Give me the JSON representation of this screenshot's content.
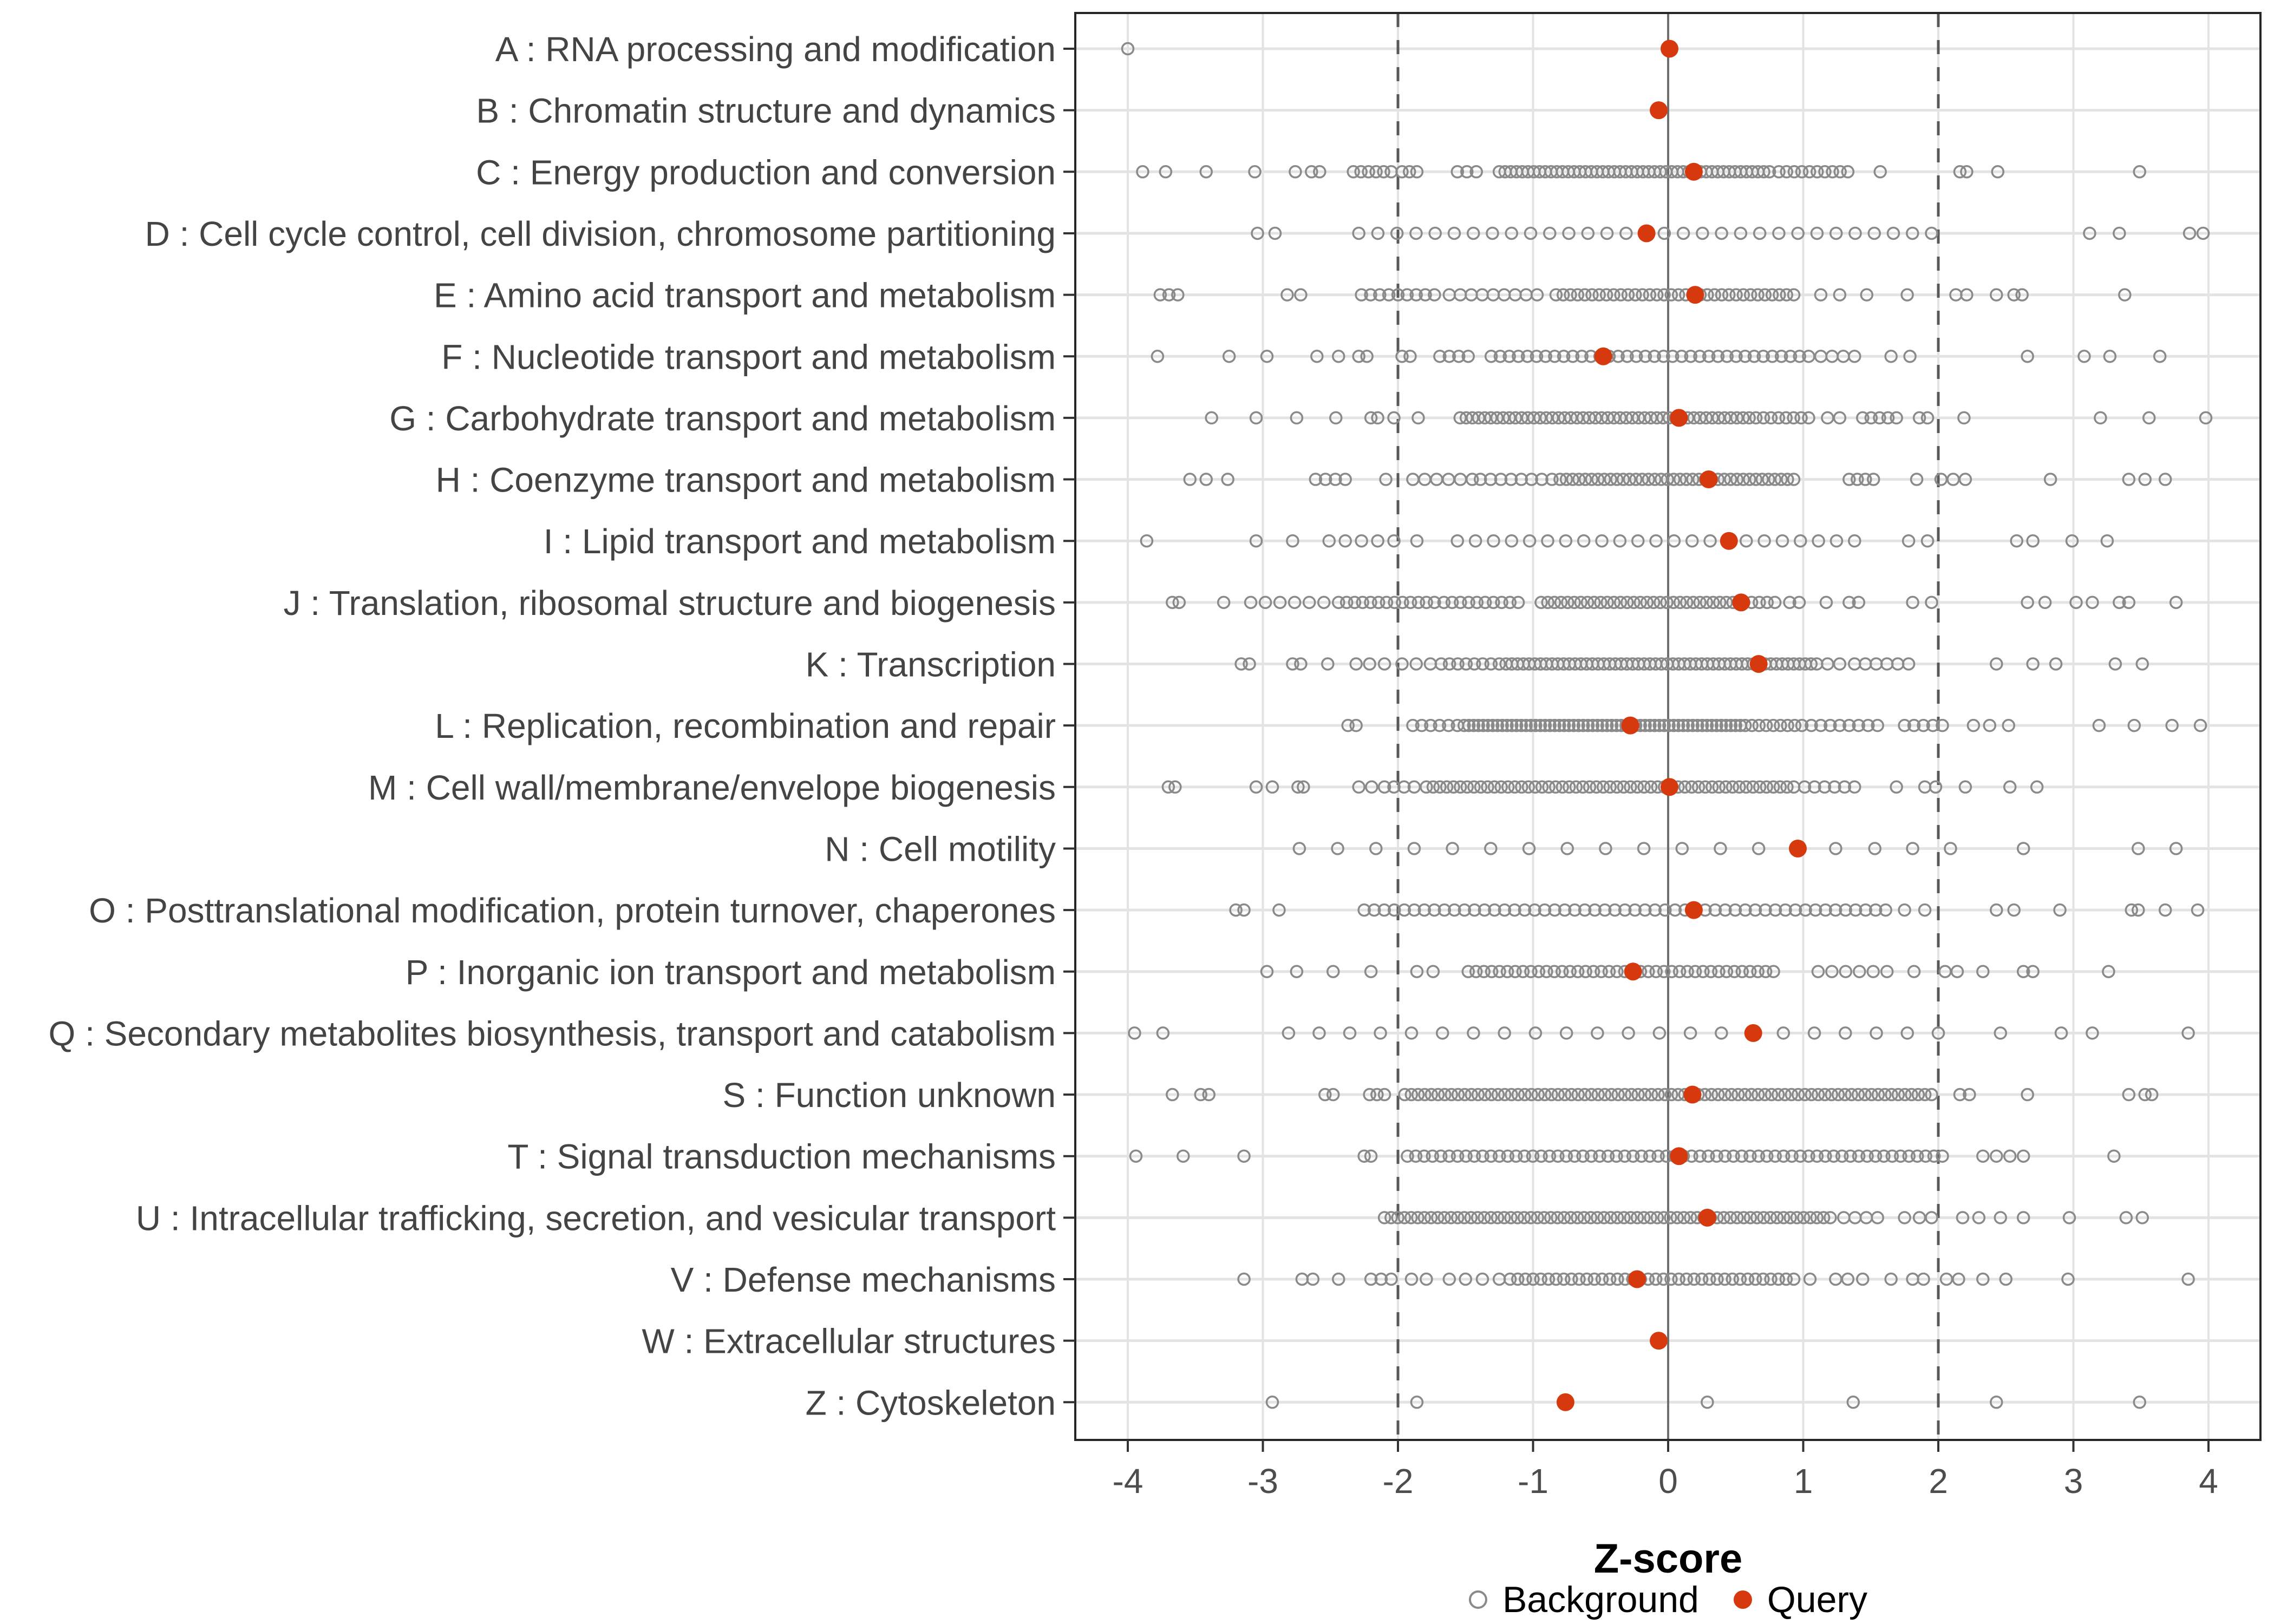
{
  "chart_data": {
    "type": "scatter",
    "title": "",
    "xlabel": "Z-score",
    "ylabel": "",
    "x_ticks": [
      -4,
      -3,
      -2,
      -1,
      0,
      1,
      2,
      3,
      4
    ],
    "xlim": [
      -4.39,
      4.38
    ],
    "grid": "on",
    "legend_position": "bottom",
    "reference_lines": {
      "solid": [
        0
      ],
      "dashed": [
        -2,
        2
      ]
    },
    "legend": {
      "background_label": "Background",
      "query_label": "Query"
    },
    "colors": {
      "query_fill": "#d6390e",
      "background_stroke": "#8a8a8a",
      "gridline": "#e3e3e3",
      "row_line": "#e3e3e3",
      "zero_line": "#6e6e6e",
      "threshold_line": "#595959",
      "panel_border": "#262626",
      "tick_mark": "#333333",
      "tick_label": "#4d4d4d",
      "category_label": "#444444",
      "legend_text": "#000000"
    },
    "note": "background entries are z-scores; an entry [from,to,n] denotes n evenly spaced points from 'from' to 'to'",
    "categories": [
      {
        "code": "A",
        "label": "A : RNA processing and modification",
        "query": 0.01,
        "background": [
          -4.0
        ]
      },
      {
        "code": "B",
        "label": "B : Chromatin structure and dynamics",
        "query": -0.07,
        "background": []
      },
      {
        "code": "C",
        "label": "C : Energy production and conversion",
        "query": 0.19,
        "background": [
          -3.89,
          -3.72,
          -3.42,
          -3.06,
          -2.76,
          -2.64,
          -2.58,
          [
            -2.33,
            -2.05,
            6
          ],
          [
            -1.97,
            -1.86,
            3
          ],
          [
            -1.56,
            -1.42,
            3
          ],
          [
            -1.25,
            0.75,
            48
          ],
          [
            0.82,
            1.33,
            10
          ],
          1.57,
          2.16,
          2.21,
          2.44,
          3.49
        ]
      },
      {
        "code": "D",
        "label": "D : Cell cycle control, cell division, chromosome partitioning",
        "query": -0.16,
        "background": [
          -3.04,
          -2.91,
          [
            -2.29,
            1.95,
            31
          ],
          3.12,
          3.34,
          3.86,
          3.96
        ]
      },
      {
        "code": "E",
        "label": "E : Amino acid transport and metabolism",
        "query": 0.2,
        "background": [
          [
            -3.76,
            -3.63,
            3
          ],
          -2.82,
          -2.72,
          [
            -2.27,
            -1.73,
            9
          ],
          [
            -1.62,
            -0.97,
            9
          ],
          [
            -0.83,
            0.93,
            34
          ],
          1.13,
          1.27,
          1.47,
          1.77,
          2.13,
          2.21,
          2.43,
          2.56,
          2.62,
          3.38
        ]
      },
      {
        "code": "F",
        "label": "F : Nucleotide transport and metabolism",
        "query": -0.48,
        "background": [
          -3.78,
          -3.25,
          -2.97,
          -2.6,
          -2.44,
          -2.29,
          -2.23,
          -1.97,
          -1.91,
          [
            -1.69,
            -1.48,
            4
          ],
          [
            -1.31,
            1.04,
            36
          ],
          [
            1.13,
            1.38,
            4
          ],
          1.65,
          1.79,
          2.66,
          3.08,
          3.27,
          3.64
        ]
      },
      {
        "code": "G",
        "label": "G : Carbohydrate transport and metabolism",
        "query": 0.08,
        "background": [
          -3.38,
          -3.05,
          -2.75,
          -2.46,
          -2.2,
          -2.15,
          -2.03,
          -1.85,
          [
            -1.54,
            0.6,
            48
          ],
          [
            0.65,
            1.04,
            8
          ],
          1.18,
          1.27,
          [
            1.44,
            1.69,
            5
          ],
          1.86,
          1.92,
          2.19,
          3.2,
          3.56,
          3.98
        ]
      },
      {
        "code": "H",
        "label": "H : Coenzyme transport and metabolism",
        "query": 0.3,
        "background": [
          -3.54,
          -3.42,
          -3.26,
          [
            -2.61,
            -2.39,
            4
          ],
          -2.09,
          [
            -1.89,
            -1.45,
            6
          ],
          [
            -1.39,
            -0.86,
            8
          ],
          [
            -0.8,
            0.93,
            38
          ],
          [
            1.34,
            1.52,
            4
          ],
          1.84,
          2.02,
          2.11,
          2.2,
          2.83,
          3.41,
          3.53,
          3.68
        ]
      },
      {
        "code": "I",
        "label": "I : Lipid transport and metabolism",
        "query": 0.45,
        "background": [
          -3.86,
          -3.05,
          -2.78,
          [
            -2.51,
            -2.03,
            5
          ],
          -1.86,
          [
            -1.56,
            1.38,
            23
          ],
          1.78,
          1.92,
          2.58,
          2.7,
          2.99,
          3.25
        ]
      },
      {
        "code": "J",
        "label": "J : Translation, ribosomal structure and biogenesis",
        "query": 0.54,
        "background": [
          -3.67,
          -3.62,
          -3.29,
          [
            -3.09,
            -2.44,
            7
          ],
          [
            -2.38,
            -1.73,
            12
          ],
          [
            -1.66,
            -1.11,
            10
          ],
          [
            -0.94,
            0.48,
            30
          ],
          [
            0.56,
            0.79,
            5
          ],
          0.9,
          0.97,
          1.17,
          1.34,
          1.41,
          1.81,
          1.95,
          2.66,
          2.79,
          3.02,
          3.14,
          3.34,
          3.41,
          3.76
        ]
      },
      {
        "code": "K",
        "label": "K : Transcription",
        "query": 0.67,
        "background": [
          -3.16,
          -3.1,
          -2.78,
          -2.72,
          -2.52,
          -2.31,
          -2.21,
          -2.1,
          [
            -1.97,
            -1.76,
            3
          ],
          [
            -1.68,
            -1.25,
            8
          ],
          [
            -1.2,
            1.1,
            55
          ],
          1.18,
          1.27,
          [
            1.38,
            1.78,
            6
          ],
          2.43,
          2.7,
          2.87,
          3.31,
          3.51
        ]
      },
      {
        "code": "L",
        "label": "L : Replication, recombination and repair",
        "query": -0.28,
        "background": [
          -2.37,
          -2.31,
          [
            -1.89,
            -1.56,
            6
          ],
          [
            -1.51,
            0.57,
            60
          ],
          [
            0.62,
            0.99,
            8
          ],
          [
            1.06,
            1.55,
            8
          ],
          [
            1.75,
            2.03,
            5
          ],
          2.26,
          2.38,
          2.52,
          3.19,
          3.45,
          3.73,
          3.94
        ]
      },
      {
        "code": "M",
        "label": "M : Cell wall/membrane/envelope biogenesis",
        "query": 0.01,
        "background": [
          -3.7,
          -3.65,
          -3.05,
          -2.93,
          -2.74,
          -2.7,
          [
            -2.29,
            -2.1,
            3
          ],
          [
            -2.03,
            -1.88,
            3
          ],
          [
            -1.79,
            0.93,
            55
          ],
          [
            1.01,
            1.38,
            6
          ],
          1.69,
          1.9,
          1.98,
          2.2,
          2.53,
          2.73
        ]
      },
      {
        "code": "N",
        "label": "N : Cell motility",
        "query": 0.96,
        "background": [
          [
            -2.73,
            0.67,
            13
          ],
          1.24,
          1.53,
          1.81,
          2.09,
          2.63,
          3.48,
          3.76
        ]
      },
      {
        "code": "O",
        "label": "O : Posttranslational modification, protein turnover, chaperones",
        "query": 0.19,
        "background": [
          -3.2,
          -3.14,
          -2.88,
          [
            -2.25,
            1.61,
            53
          ],
          1.75,
          1.9,
          2.43,
          2.56,
          2.9,
          3.43,
          3.48,
          3.68,
          3.92
        ]
      },
      {
        "code": "P",
        "label": "P : Inorganic ion transport and metabolism",
        "query": -0.26,
        "background": [
          -2.97,
          -2.75,
          -2.48,
          -2.2,
          -1.86,
          -1.74,
          [
            -1.48,
            0.78,
            40
          ],
          [
            1.11,
            1.62,
            6
          ],
          1.82,
          2.05,
          2.14,
          2.33,
          2.63,
          2.7,
          3.26
        ]
      },
      {
        "code": "Q",
        "label": "Q : Secondary metabolites biosynthesis, transport and catabolism",
        "query": 0.63,
        "background": [
          -3.95,
          -3.74,
          [
            -2.81,
            -2.13,
            4
          ],
          [
            -1.9,
            2.0,
            18
          ],
          2.46,
          2.91,
          3.14,
          3.85
        ]
      },
      {
        "code": "S",
        "label": "S : Function unknown",
        "query": 0.18,
        "background": [
          -3.67,
          -3.46,
          -3.4,
          -2.54,
          -2.48,
          [
            -2.21,
            -2.1,
            3
          ],
          [
            -1.95,
            1.95,
            80
          ],
          2.16,
          2.23,
          2.66,
          3.41,
          3.53,
          3.58
        ]
      },
      {
        "code": "T",
        "label": "T : Signal transduction mechanisms",
        "query": 0.08,
        "background": [
          -3.94,
          -3.59,
          -3.14,
          -2.25,
          -2.2,
          [
            -1.93,
            2.03,
            65
          ],
          [
            2.33,
            2.63,
            4
          ],
          3.3
        ]
      },
      {
        "code": "U",
        "label": "U : Intracellular trafficking, secretion, and vesicular transport",
        "query": 0.29,
        "background": [
          [
            -2.1,
            1.2,
            68
          ],
          [
            1.3,
            1.55,
            4
          ],
          1.75,
          1.86,
          1.95,
          2.18,
          2.3,
          2.46,
          2.63,
          2.97,
          3.39,
          3.51
        ]
      },
      {
        "code": "V",
        "label": "V : Defense mechanisms",
        "query": -0.23,
        "background": [
          -3.14,
          -2.71,
          -2.63,
          -2.44,
          [
            -2.2,
            -2.05,
            3
          ],
          -1.9,
          -1.79,
          -1.62,
          [
            -1.5,
            -1.25,
            3
          ],
          [
            -1.17,
            0.93,
            38
          ],
          1.05,
          1.24,
          1.33,
          1.44,
          1.65,
          1.81,
          1.89,
          2.06,
          2.15,
          2.33,
          2.5,
          2.96,
          3.85
        ]
      },
      {
        "code": "W",
        "label": "W : Extracellular structures",
        "query": -0.07,
        "background": []
      },
      {
        "code": "Z",
        "label": "Z : Cytoskeleton",
        "query": -0.76,
        "background": [
          -2.93,
          -1.86,
          0.29,
          1.37,
          2.43,
          3.49
        ]
      }
    ]
  }
}
